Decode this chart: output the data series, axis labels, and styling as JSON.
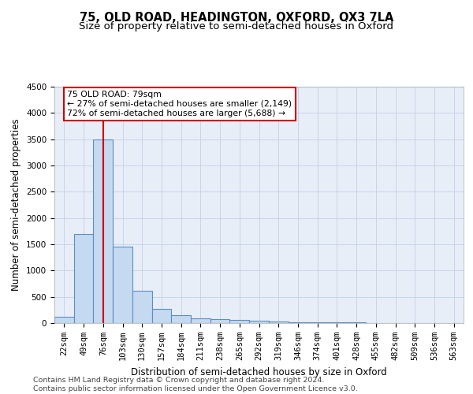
{
  "title": "75, OLD ROAD, HEADINGTON, OXFORD, OX3 7LA",
  "subtitle": "Size of property relative to semi-detached houses in Oxford",
  "xlabel": "Distribution of semi-detached houses by size in Oxford",
  "ylabel": "Number of semi-detached properties",
  "footer_line1": "Contains HM Land Registry data © Crown copyright and database right 2024.",
  "footer_line2": "Contains public sector information licensed under the Open Government Licence v3.0.",
  "categories": [
    "22sqm",
    "49sqm",
    "76sqm",
    "103sqm",
    "130sqm",
    "157sqm",
    "184sqm",
    "211sqm",
    "238sqm",
    "265sqm",
    "292sqm",
    "319sqm",
    "346sqm",
    "374sqm",
    "401sqm",
    "428sqm",
    "455sqm",
    "482sqm",
    "509sqm",
    "536sqm",
    "563sqm"
  ],
  "values": [
    120,
    1700,
    3500,
    1450,
    620,
    270,
    150,
    90,
    75,
    55,
    40,
    30,
    22,
    18,
    12,
    9,
    7,
    5,
    4,
    3,
    2
  ],
  "bar_color": "#c5d9f0",
  "bar_edge_color": "#5b8ec5",
  "bar_edge_width": 0.8,
  "grid_color": "#c8d4e8",
  "background_color": "#e8eef8",
  "ylim": [
    0,
    4500
  ],
  "yticks": [
    0,
    500,
    1000,
    1500,
    2000,
    2500,
    3000,
    3500,
    4000,
    4500
  ],
  "property_bin_index": 2,
  "red_line_color": "#cc0000",
  "annotation_text_line1": "75 OLD ROAD: 79sqm",
  "annotation_text_line2": "← 27% of semi-detached houses are smaller (2,149)",
  "annotation_text_line3": "72% of semi-detached houses are larger (5,688) →",
  "annotation_box_color": "white",
  "annotation_box_edge_color": "#cc0000",
  "title_fontsize": 10.5,
  "subtitle_fontsize": 9.5,
  "axis_label_fontsize": 8.5,
  "tick_fontsize": 7.5,
  "annotation_fontsize": 7.8,
  "footer_fontsize": 6.8
}
